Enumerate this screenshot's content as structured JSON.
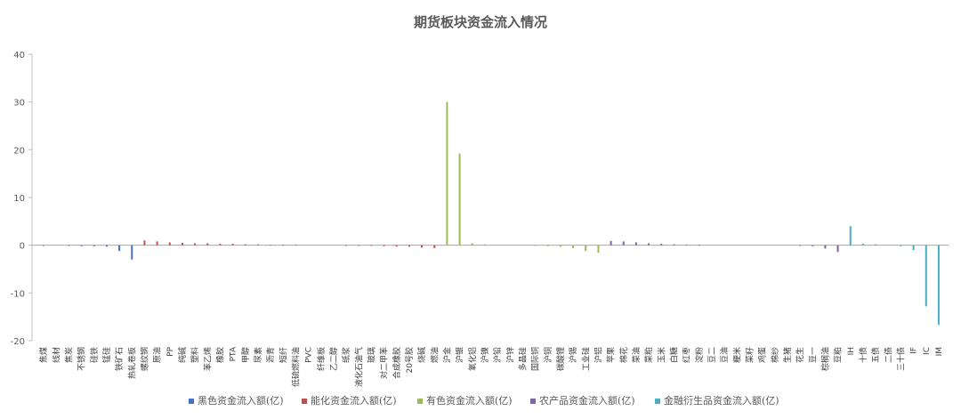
{
  "chart_data": {
    "type": "bar",
    "title": "期货板块资金流入情况",
    "xlabel": "",
    "ylabel": "",
    "ylim": [
      -20,
      40
    ],
    "yticks": [
      -20,
      -10,
      0,
      10,
      20,
      30,
      40
    ],
    "grid": false,
    "legend_position": "bottom",
    "series": [
      {
        "name": "黑色资金流入额(亿)",
        "color": "#4472C4"
      },
      {
        "name": "能化资金流入额(亿)",
        "color": "#C0504D"
      },
      {
        "name": "有色资金流入额(亿)",
        "color": "#9BBB59"
      },
      {
        "name": "农产品资金流入额(亿)",
        "color": "#8064A2"
      },
      {
        "name": "金融衍生品资金流入额(亿)",
        "color": "#4BACC6"
      }
    ],
    "categories": [
      {
        "label": "焦煤",
        "series": 0,
        "value": -0.1
      },
      {
        "label": "线材",
        "series": 0,
        "value": 0
      },
      {
        "label": "焦炭",
        "series": 0,
        "value": -0.1
      },
      {
        "label": "不锈钢",
        "series": 0,
        "value": -0.2
      },
      {
        "label": "硅铁",
        "series": 0,
        "value": -0.2
      },
      {
        "label": "锰硅",
        "series": 0,
        "value": -0.3
      },
      {
        "label": "铁矿石",
        "series": 0,
        "value": -1.2
      },
      {
        "label": "热轧卷板",
        "series": 0,
        "value": -3.0
      },
      {
        "label": "螺纹钢",
        "series": 1,
        "value": 1.0
      },
      {
        "label": "原油",
        "series": 1,
        "value": 0.8
      },
      {
        "label": "PP",
        "series": 1,
        "value": 0.6
      },
      {
        "label": "纯碱",
        "series": 1,
        "value": 0.5
      },
      {
        "label": "塑料",
        "series": 1,
        "value": 0.4
      },
      {
        "label": "苯乙烯",
        "series": 1,
        "value": 0.4
      },
      {
        "label": "橡胶",
        "series": 1,
        "value": 0.3
      },
      {
        "label": "PTA",
        "series": 1,
        "value": 0.3
      },
      {
        "label": "甲醇",
        "series": 1,
        "value": 0.2
      },
      {
        "label": "尿素",
        "series": 1,
        "value": 0.2
      },
      {
        "label": "沥青",
        "series": 1,
        "value": 0.1
      },
      {
        "label": "短纤",
        "series": 1,
        "value": 0.1
      },
      {
        "label": "低硫燃料油",
        "series": 1,
        "value": 0.1
      },
      {
        "label": "PVC",
        "series": 1,
        "value": 0
      },
      {
        "label": "纤维板",
        "series": 1,
        "value": 0
      },
      {
        "label": "乙二醇",
        "series": 1,
        "value": 0
      },
      {
        "label": "纸浆",
        "series": 1,
        "value": -0.1
      },
      {
        "label": "液化石油气",
        "series": 1,
        "value": -0.1
      },
      {
        "label": "玻璃",
        "series": 1,
        "value": -0.1
      },
      {
        "label": "对二甲苯",
        "series": 1,
        "value": -0.2
      },
      {
        "label": "合成橡胶",
        "series": 1,
        "value": -0.3
      },
      {
        "label": "20号胶",
        "series": 1,
        "value": -0.3
      },
      {
        "label": "烧碱",
        "series": 1,
        "value": -0.5
      },
      {
        "label": "燃油",
        "series": 1,
        "value": -0.6
      },
      {
        "label": "沪金",
        "series": 2,
        "value": 30.0
      },
      {
        "label": "沪银",
        "series": 2,
        "value": 19.2
      },
      {
        "label": "氧化铝",
        "series": 2,
        "value": 0.4
      },
      {
        "label": "沪镍",
        "series": 2,
        "value": 0.2
      },
      {
        "label": "沪铅",
        "series": 2,
        "value": 0.1
      },
      {
        "label": "沪锌",
        "series": 2,
        "value": 0.1
      },
      {
        "label": "多晶硅",
        "series": 2,
        "value": 0
      },
      {
        "label": "国际铜",
        "series": 2,
        "value": -0.1
      },
      {
        "label": "沪铜",
        "series": 2,
        "value": -0.2
      },
      {
        "label": "碳酸锂",
        "series": 2,
        "value": -0.3
      },
      {
        "label": "沪锡",
        "series": 2,
        "value": -0.6
      },
      {
        "label": "工业硅",
        "series": 2,
        "value": -1.2
      },
      {
        "label": "沪铝",
        "series": 2,
        "value": -1.6
      },
      {
        "label": "苹果",
        "series": 3,
        "value": 0.9
      },
      {
        "label": "棉花",
        "series": 3,
        "value": 0.8
      },
      {
        "label": "菜油",
        "series": 3,
        "value": 0.6
      },
      {
        "label": "菜粕",
        "series": 3,
        "value": 0.4
      },
      {
        "label": "玉米",
        "series": 3,
        "value": 0.3
      },
      {
        "label": "白糖",
        "series": 3,
        "value": 0.2
      },
      {
        "label": "红枣",
        "series": 3,
        "value": 0.1
      },
      {
        "label": "淀粉",
        "series": 3,
        "value": 0.1
      },
      {
        "label": "豆二",
        "series": 3,
        "value": 0
      },
      {
        "label": "豆油",
        "series": 3,
        "value": 0
      },
      {
        "label": "粳米",
        "series": 3,
        "value": 0
      },
      {
        "label": "菜籽",
        "series": 3,
        "value": 0
      },
      {
        "label": "鸡蛋",
        "series": 3,
        "value": 0
      },
      {
        "label": "棉纱",
        "series": 3,
        "value": 0
      },
      {
        "label": "生猪",
        "series": 3,
        "value": 0
      },
      {
        "label": "花生",
        "series": 3,
        "value": -0.1
      },
      {
        "label": "豆一",
        "series": 3,
        "value": -0.2
      },
      {
        "label": "棕榈油",
        "series": 3,
        "value": -0.7
      },
      {
        "label": "豆粕",
        "series": 3,
        "value": -1.4
      },
      {
        "label": "IH",
        "series": 4,
        "value": 4.0
      },
      {
        "label": "十债",
        "series": 4,
        "value": 0.3
      },
      {
        "label": "五债",
        "series": 4,
        "value": 0.2
      },
      {
        "label": "二债",
        "series": 4,
        "value": 0
      },
      {
        "label": "三十债",
        "series": 4,
        "value": -0.2
      },
      {
        "label": "IF",
        "series": 4,
        "value": -1.0
      },
      {
        "label": "IC",
        "series": 4,
        "value": -12.8
      },
      {
        "label": "IM",
        "series": 4,
        "value": -16.7
      }
    ]
  }
}
